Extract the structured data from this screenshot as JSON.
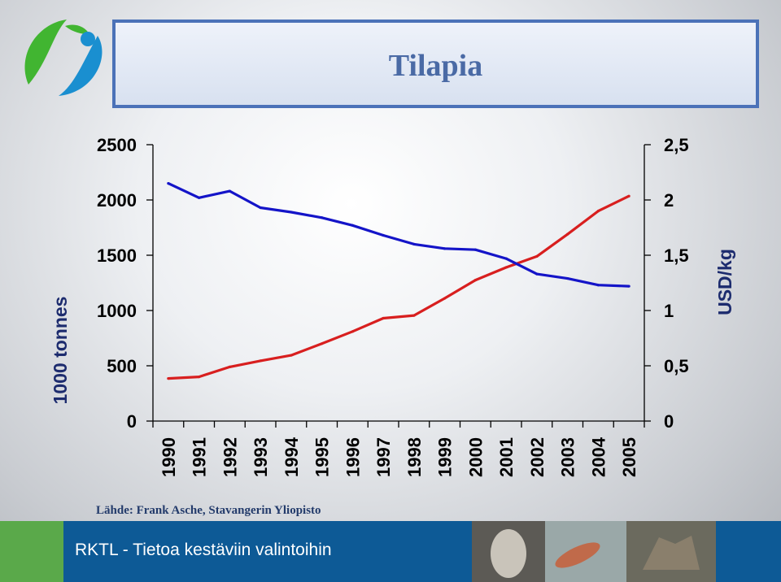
{
  "header": {
    "title": "Tilapia"
  },
  "chart_data": {
    "type": "line",
    "x": [
      "1990",
      "1991",
      "1992",
      "1993",
      "1994",
      "1995",
      "1996",
      "1997",
      "1998",
      "1999",
      "2000",
      "2001",
      "2002",
      "2003",
      "2004",
      "2005"
    ],
    "series": [
      {
        "axis": "left",
        "color": "#d81f1f",
        "values": [
          385,
          400,
          490,
          545,
          595,
          700,
          810,
          930,
          955,
          1110,
          1275,
          1390,
          1490,
          1690,
          1900,
          2035
        ]
      },
      {
        "axis": "right",
        "color": "#1414c8",
        "values": [
          2.15,
          2.02,
          2.08,
          1.93,
          1.89,
          1.84,
          1.77,
          1.68,
          1.6,
          1.56,
          1.55,
          1.47,
          1.33,
          1.29,
          1.23,
          1.22
        ]
      }
    ],
    "y_left": {
      "label": "1000 tonnes",
      "ticks": [
        "0",
        "500",
        "1000",
        "1500",
        "2000",
        "2500"
      ],
      "range": [
        0,
        2500
      ]
    },
    "y_right": {
      "label": "USD/kg",
      "ticks": [
        "0",
        "0,5",
        "1",
        "1,5",
        "2",
        "2,5"
      ],
      "range": [
        0,
        2.5
      ]
    },
    "grid": false
  },
  "source": "Lähde: Frank Asche, Stavangerin Yliopisto",
  "footer": {
    "text": "RKTL - Tietoa kestäviin valintoihin"
  },
  "colors": {
    "footer_bg": "#0d5a96",
    "title_border": "#4b72b8",
    "title_text": "#4a6aa5",
    "green": "#5aa94a"
  }
}
